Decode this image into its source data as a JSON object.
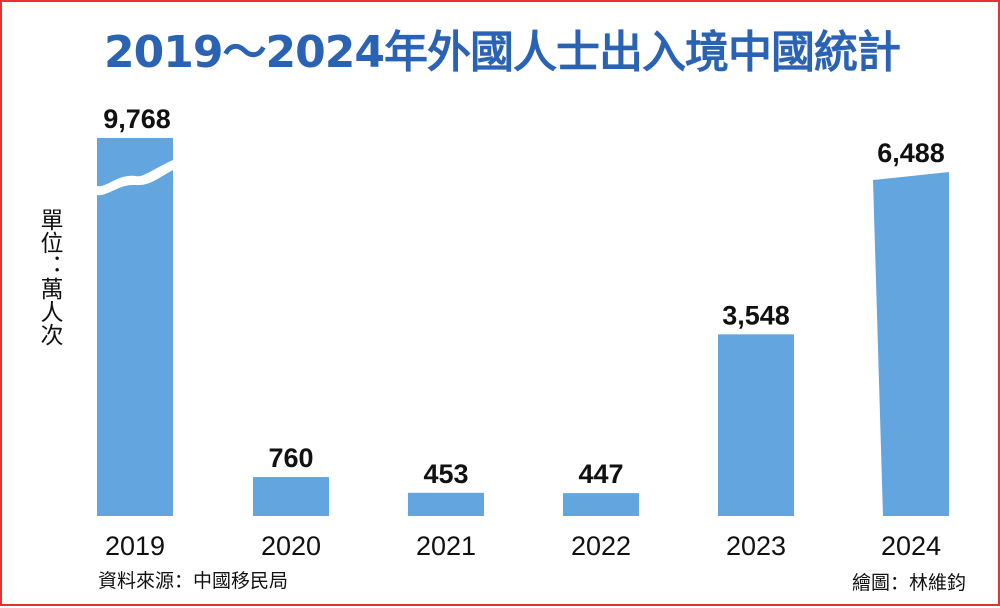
{
  "title": "2019～2024年外國人士出入境中國統計",
  "unit_label": "單位：萬人次",
  "source": "資料來源：中國移民局",
  "credit": "繪圖：林維鈞",
  "colors": {
    "bar": "#63a5de",
    "title": "#2b63b4",
    "border": "#e8322f"
  },
  "chart_data": {
    "type": "bar",
    "title": "2019～2024年外國人士出入境中國統計",
    "ylabel": "單位：萬人次",
    "xlabel": "",
    "categories": [
      "2019",
      "2020",
      "2021",
      "2022",
      "2023",
      "2024"
    ],
    "values": [
      9768,
      760,
      453,
      447,
      3548,
      6488
    ],
    "value_labels": [
      "9,768",
      "760",
      "453",
      "447",
      "3,548",
      "6,488"
    ],
    "axis_break": "2019 bar truncated with a wavy break; 2024 bar top slanted",
    "grid": false,
    "legend": "none"
  }
}
